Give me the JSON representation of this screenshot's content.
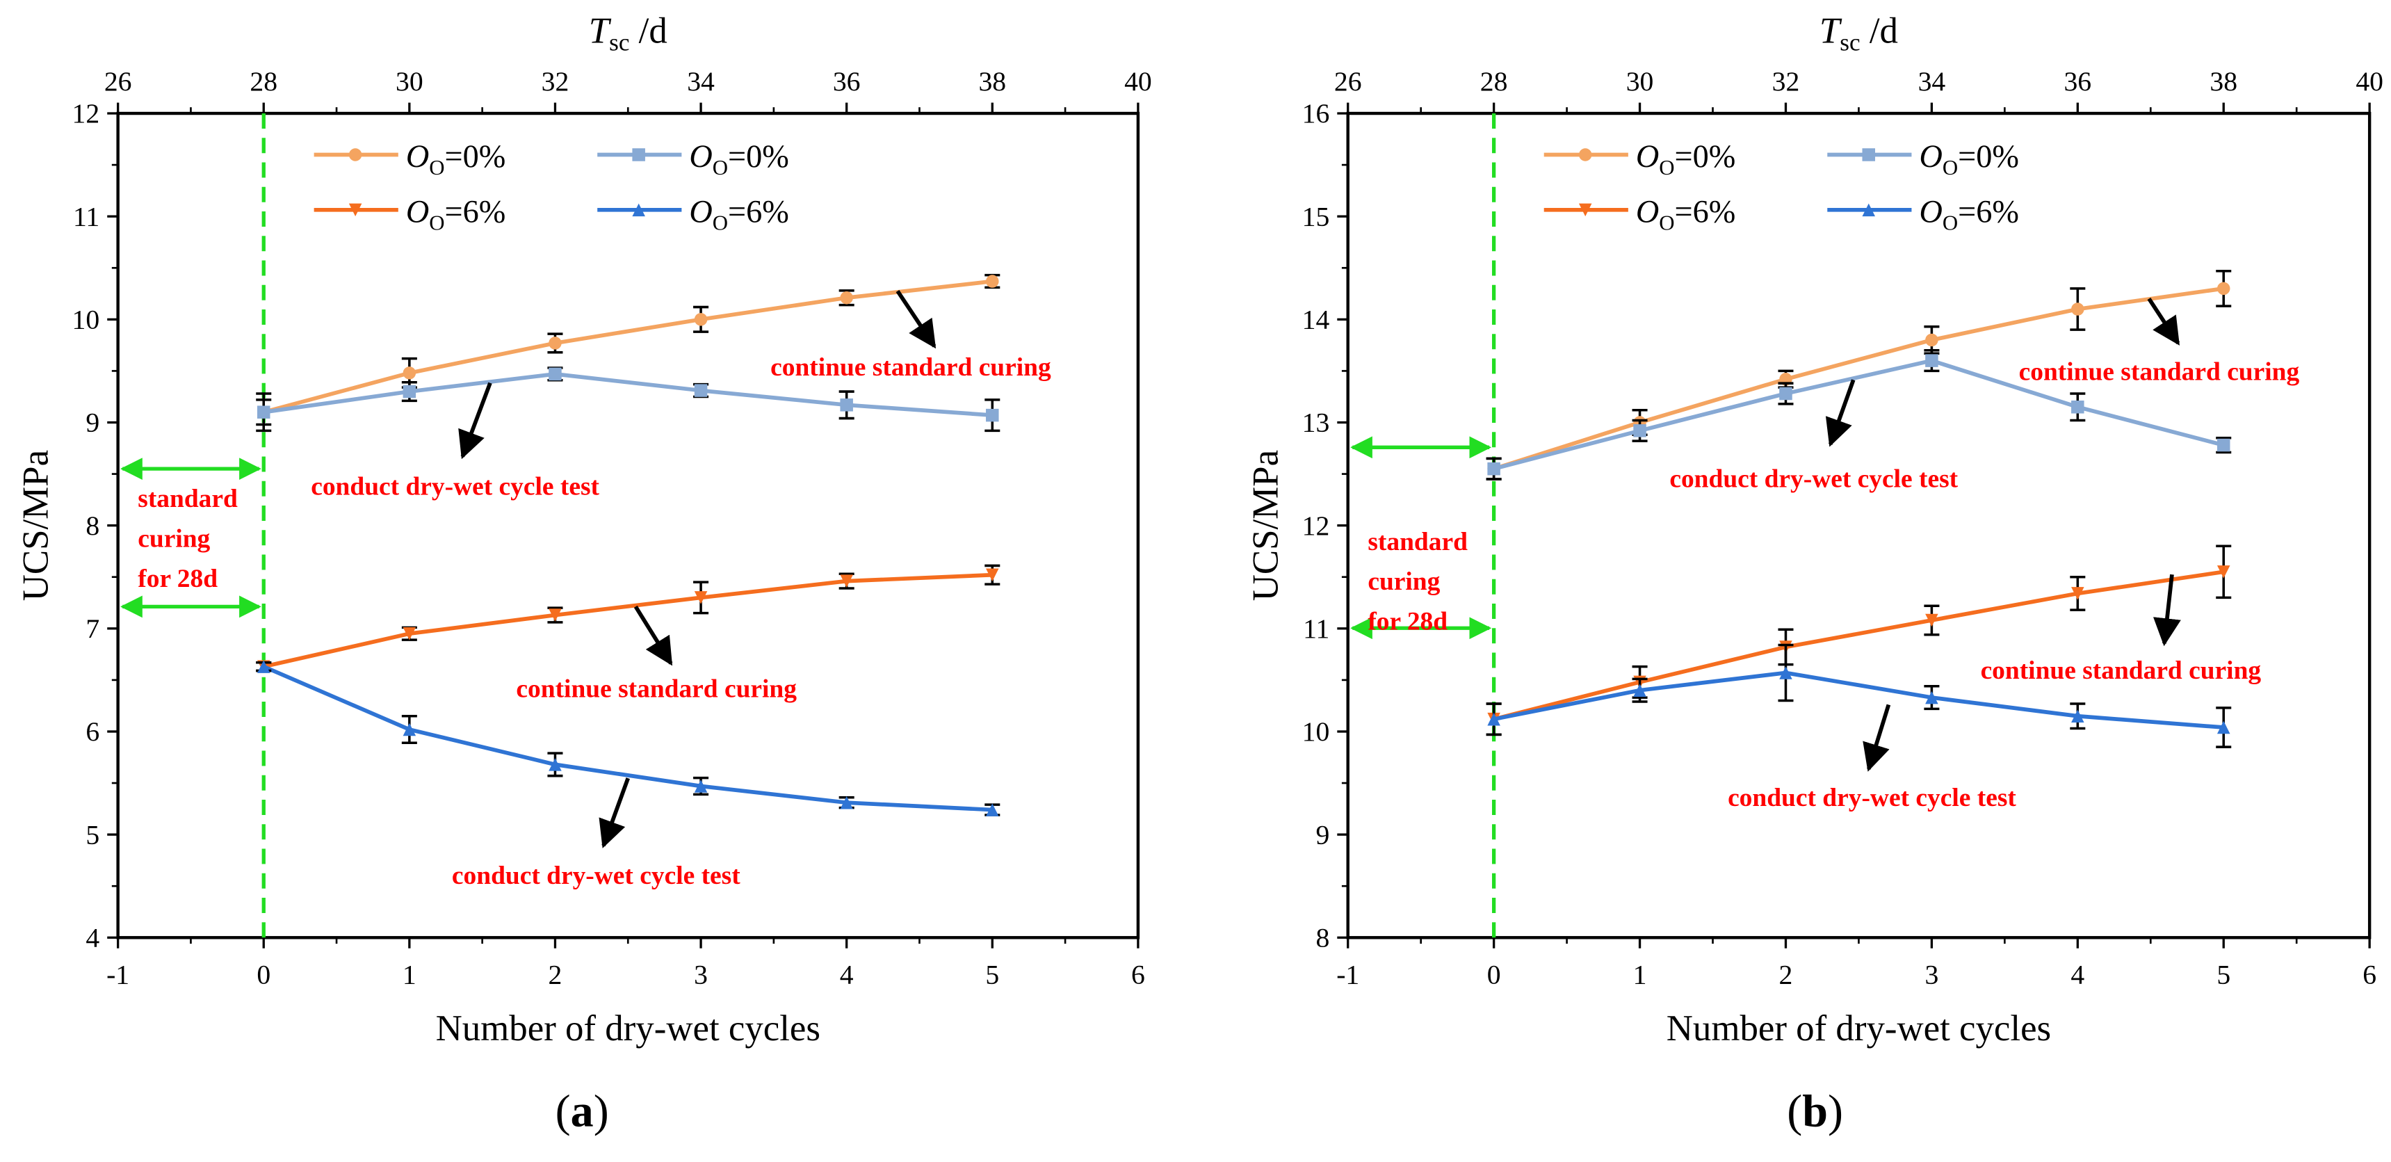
{
  "colors": {
    "light_orange": "#f4a460",
    "light_blue": "#87a9d4",
    "orange": "#f56d1e",
    "blue": "#2f74d4",
    "green": "#22dd22",
    "annotation": "#ff0000"
  },
  "chart_data": [
    {
      "type": "line",
      "panel_label": "a",
      "xlabel": "Number of dry-wet cycles",
      "ylabel": "UCS/MPa",
      "top_xlabel_main": "T",
      "top_xlabel_sub": "sc",
      "top_xlabel_unit": " /d",
      "xlim": [
        -1,
        6
      ],
      "ylim": [
        4,
        12
      ],
      "xticks": [
        "-1",
        "0",
        "1",
        "2",
        "3",
        "4",
        "5",
        "6"
      ],
      "yticks": [
        "4",
        "5",
        "6",
        "7",
        "8",
        "9",
        "10",
        "11",
        "12"
      ],
      "top_ticks": [
        "26",
        "28",
        "30",
        "32",
        "34",
        "36",
        "38",
        "40"
      ],
      "x": [
        0,
        1,
        2,
        3,
        4,
        5
      ],
      "series": [
        {
          "name_main": "O",
          "name_sub": "O",
          "name_value": "=0%",
          "color_key": "light_orange",
          "marker": "circle",
          "values": [
            9.1,
            9.48,
            9.77,
            10.0,
            10.21,
            10.37
          ],
          "err": [
            0.12,
            0.14,
            0.09,
            0.12,
            0.07,
            0.06
          ]
        },
        {
          "name_main": "O",
          "name_sub": "O",
          "name_value": "=0%",
          "color_key": "light_blue",
          "marker": "square",
          "values": [
            9.1,
            9.3,
            9.47,
            9.31,
            9.17,
            9.07
          ],
          "err": [
            0.18,
            0.09,
            0.06,
            0.06,
            0.13,
            0.15
          ]
        },
        {
          "name_main": "O",
          "name_sub": "O",
          "name_value": "=6%",
          "color_key": "orange",
          "marker": "triangle-down",
          "values": [
            6.63,
            6.95,
            7.13,
            7.3,
            7.46,
            7.52
          ],
          "err": [
            0.04,
            0.06,
            0.07,
            0.15,
            0.07,
            0.09
          ]
        },
        {
          "name_main": "O",
          "name_sub": "O",
          "name_value": "=6%",
          "color_key": "blue",
          "marker": "triangle-up",
          "values": [
            6.63,
            6.02,
            5.68,
            5.47,
            5.31,
            5.24
          ],
          "err": [
            0.04,
            0.13,
            0.11,
            0.08,
            0.05,
            0.05
          ]
        }
      ],
      "annotations": {
        "curing_label_1": "continue standard curing",
        "drywet_label_1": "conduct dry-wet cycle  test",
        "curing_label_2": "continue standard curing",
        "drywet_label_2": "conduct dry-wet cycle  test",
        "standard_1": "standard",
        "standard_2": "curing",
        "standard_3": "for 28d"
      }
    },
    {
      "type": "line",
      "panel_label": "b",
      "xlabel": "Number of dry-wet cycles",
      "ylabel": "UCS/MPa",
      "top_xlabel_main": "T",
      "top_xlabel_sub": "sc",
      "top_xlabel_unit": " /d",
      "xlim": [
        -1,
        6
      ],
      "ylim": [
        8,
        16
      ],
      "xticks": [
        "-1",
        "0",
        "1",
        "2",
        "3",
        "4",
        "5",
        "6"
      ],
      "yticks": [
        "8",
        "9",
        "10",
        "11",
        "12",
        "13",
        "14",
        "15",
        "16"
      ],
      "top_ticks": [
        "26",
        "28",
        "30",
        "32",
        "34",
        "36",
        "38",
        "40"
      ],
      "x": [
        0,
        1,
        2,
        3,
        4,
        5
      ],
      "series": [
        {
          "name_main": "O",
          "name_sub": "O",
          "name_value": "=0%",
          "color_key": "light_orange",
          "marker": "circle",
          "values": [
            12.55,
            13.0,
            13.42,
            13.8,
            14.1,
            14.3
          ],
          "err": [
            0.1,
            0.12,
            0.08,
            0.13,
            0.2,
            0.17
          ]
        },
        {
          "name_main": "O",
          "name_sub": "O",
          "name_value": "=0%",
          "color_key": "light_blue",
          "marker": "square",
          "values": [
            12.55,
            12.92,
            13.28,
            13.6,
            13.15,
            12.78
          ],
          "err": [
            0.1,
            0.1,
            0.1,
            0.1,
            0.13,
            0.07
          ]
        },
        {
          "name_main": "O",
          "name_sub": "O",
          "name_value": "=6%",
          "color_key": "orange",
          "marker": "triangle-down",
          "values": [
            10.12,
            10.48,
            10.82,
            11.08,
            11.34,
            11.55
          ],
          "err": [
            0.15,
            0.15,
            0.17,
            0.14,
            0.16,
            0.25
          ]
        },
        {
          "name_main": "O",
          "name_sub": "O",
          "name_value": "=6%",
          "color_key": "blue",
          "marker": "triangle-up",
          "values": [
            10.12,
            10.4,
            10.57,
            10.33,
            10.15,
            10.04
          ],
          "err": [
            0.15,
            0.11,
            0.27,
            0.11,
            0.12,
            0.19
          ]
        }
      ],
      "annotations": {
        "curing_label_1": "continue standard curing",
        "drywet_label_1": "conduct dry-wet cycle  test",
        "curing_label_2": "continue standard curing",
        "drywet_label_2": "conduct dry-wet cycle  test",
        "standard_1": "standard",
        "standard_2": "curing",
        "standard_3": "for 28d"
      }
    }
  ]
}
